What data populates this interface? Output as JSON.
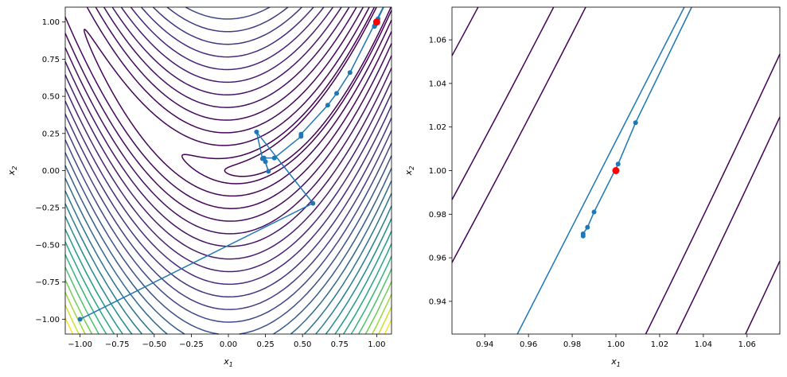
{
  "chart_data": [
    {
      "type": "line",
      "title": "",
      "xlabel": "x",
      "xlabel_sub": "1",
      "ylabel": "x",
      "ylabel_sub": "2",
      "xlim": [
        -1.1,
        1.1
      ],
      "ylim": [
        -1.1,
        1.1
      ],
      "xticks": [
        "-1.00",
        "-0.75",
        "-0.50",
        "-0.25",
        "0.00",
        "0.25",
        "0.50",
        "0.75",
        "1.00"
      ],
      "yticks": [
        "-1.00",
        "-0.75",
        "-0.50",
        "-0.25",
        "0.00",
        "0.25",
        "0.50",
        "0.75",
        "1.00"
      ],
      "contour": {
        "function": "rosenbrock",
        "colormap": "viridis",
        "level_step_sqrt": 0.85,
        "level_count": 26,
        "extra_levels": [
          1.05
        ]
      },
      "path": {
        "color": "#1f77b4",
        "points": [
          [
            -1,
            -1
          ],
          [
            0.57,
            -0.22
          ],
          [
            0.19,
            0.26
          ],
          [
            0.23,
            0.08
          ],
          [
            0.25,
            0.06
          ],
          [
            0.27,
            -0.005
          ],
          [
            0.24,
            0.085
          ],
          [
            0.31,
            0.085
          ],
          [
            0.49,
            0.23
          ],
          [
            0.49,
            0.245
          ],
          [
            0.67,
            0.44
          ],
          [
            0.73,
            0.52
          ],
          [
            0.82,
            0.66
          ],
          [
            1.1,
            1.21
          ],
          [
            1.009,
            1.022
          ],
          [
            1.001,
            1.003
          ],
          [
            0.99,
            0.981
          ],
          [
            0.987,
            0.974
          ],
          [
            0.985,
            0.971
          ],
          [
            0.985,
            0.97
          ]
        ]
      },
      "minimum": {
        "color": "#ff0000",
        "point": [
          1,
          1
        ]
      }
    },
    {
      "type": "line",
      "title": "",
      "xlabel": "x",
      "xlabel_sub": "1",
      "ylabel": "x",
      "ylabel_sub": "2",
      "xlim": [
        0.925,
        1.075
      ],
      "ylim": [
        0.925,
        1.075
      ],
      "xticks": [
        "0.94",
        "0.96",
        "0.98",
        "1.00",
        "1.02",
        "1.04",
        "1.06"
      ],
      "yticks": [
        "0.94",
        "0.96",
        "0.98",
        "1.00",
        "1.02",
        "1.04",
        "1.06"
      ],
      "contour": {
        "function": "rosenbrock",
        "colormap": "viridis",
        "level_step_sqrt": 0.85,
        "level_count": 26,
        "extra_levels": [
          1.05
        ]
      },
      "path": {
        "color": "#1f77b4",
        "points": [
          [
            0.82,
            0.66
          ],
          [
            1.1,
            1.21
          ],
          [
            1.009,
            1.022
          ],
          [
            1.001,
            1.003
          ],
          [
            0.99,
            0.981
          ],
          [
            0.987,
            0.974
          ],
          [
            0.985,
            0.971
          ],
          [
            0.985,
            0.97
          ]
        ]
      },
      "minimum": {
        "color": "#ff0000",
        "point": [
          1,
          1
        ]
      }
    }
  ]
}
